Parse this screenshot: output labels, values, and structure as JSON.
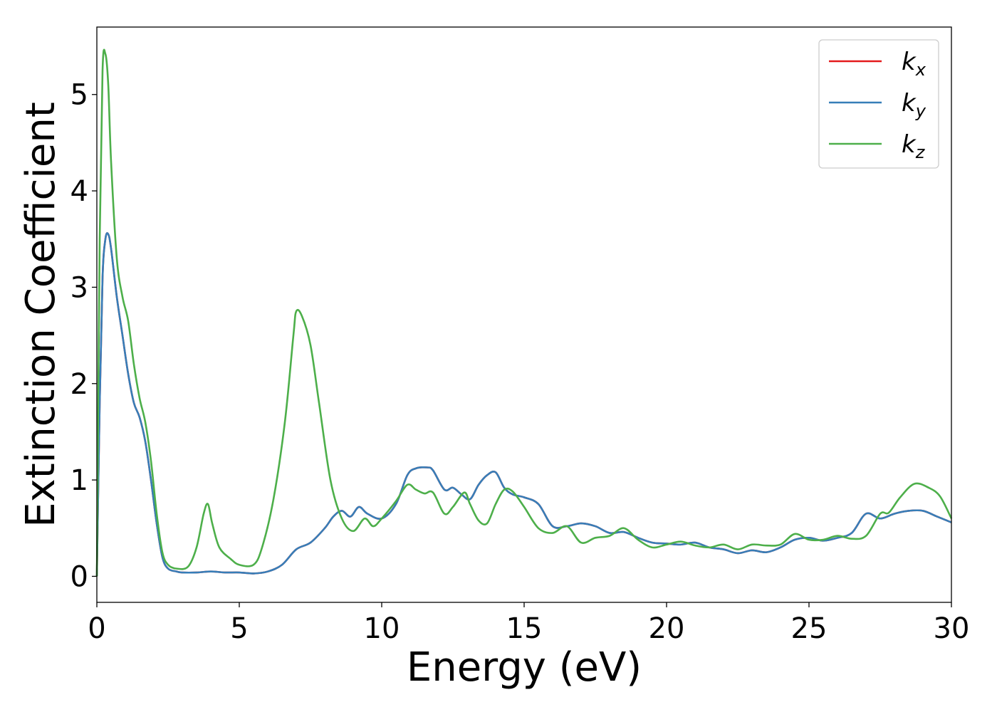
{
  "chart_data": {
    "type": "line",
    "title": "",
    "xlabel": "Energy (eV)",
    "ylabel": "Extinction Coefficient",
    "xlim": [
      0,
      30
    ],
    "ylim": [
      -0.27,
      5.7
    ],
    "xticks": [
      "0",
      "5",
      "10",
      "15",
      "20",
      "25",
      "30"
    ],
    "yticks": [
      "0",
      "1",
      "2",
      "3",
      "4",
      "5"
    ],
    "grid": false,
    "legend_position": "top-right",
    "series": [
      {
        "name": "k",
        "subscript": "x",
        "color": "#e41a1c",
        "x": [
          0,
          0.1,
          0.2,
          0.3,
          0.4,
          0.5,
          0.7,
          0.9,
          1.1,
          1.3,
          1.5,
          1.7,
          1.9,
          2.1,
          2.3,
          2.5,
          2.8,
          3.0,
          3.5,
          4.0,
          4.5,
          5.0,
          5.5,
          6.0,
          6.5,
          7.0,
          7.5,
          8.0,
          8.3,
          8.6,
          8.9,
          9.2,
          9.5,
          10.0,
          10.5,
          10.9,
          11.2,
          11.6,
          11.8,
          12.2,
          12.5,
          12.8,
          13.1,
          13.4,
          13.7,
          14.0,
          14.3,
          14.6,
          15.0,
          15.5,
          16.0,
          16.5,
          17.0,
          17.5,
          18.0,
          18.5,
          19.0,
          19.5,
          20.0,
          20.5,
          21.0,
          21.5,
          22.0,
          22.5,
          23.0,
          23.5,
          24.0,
          24.5,
          25.0,
          25.5,
          26.0,
          26.5,
          27.0,
          27.5,
          28.0,
          28.5,
          29.0,
          29.5,
          30.0
        ],
        "y": [
          0,
          1.8,
          3.1,
          3.5,
          3.55,
          3.4,
          2.9,
          2.5,
          2.1,
          1.8,
          1.65,
          1.4,
          1.0,
          0.55,
          0.2,
          0.08,
          0.05,
          0.04,
          0.04,
          0.05,
          0.04,
          0.04,
          0.03,
          0.05,
          0.12,
          0.28,
          0.35,
          0.5,
          0.62,
          0.68,
          0.62,
          0.72,
          0.65,
          0.6,
          0.75,
          1.05,
          1.12,
          1.13,
          1.1,
          0.9,
          0.92,
          0.85,
          0.8,
          0.95,
          1.05,
          1.08,
          0.92,
          0.85,
          0.82,
          0.75,
          0.52,
          0.52,
          0.55,
          0.52,
          0.45,
          0.46,
          0.4,
          0.35,
          0.34,
          0.33,
          0.35,
          0.3,
          0.28,
          0.24,
          0.27,
          0.25,
          0.3,
          0.38,
          0.4,
          0.37,
          0.4,
          0.45,
          0.65,
          0.6,
          0.65,
          0.68,
          0.68,
          0.62,
          0.56
        ]
      },
      {
        "name": "k",
        "subscript": "y",
        "color": "#377eb8",
        "x": [
          0,
          0.1,
          0.2,
          0.3,
          0.4,
          0.5,
          0.7,
          0.9,
          1.1,
          1.3,
          1.5,
          1.7,
          1.9,
          2.1,
          2.3,
          2.5,
          2.8,
          3.0,
          3.5,
          4.0,
          4.5,
          5.0,
          5.5,
          6.0,
          6.5,
          7.0,
          7.5,
          8.0,
          8.3,
          8.6,
          8.9,
          9.2,
          9.5,
          10.0,
          10.5,
          10.9,
          11.2,
          11.6,
          11.8,
          12.2,
          12.5,
          12.8,
          13.1,
          13.4,
          13.7,
          14.0,
          14.3,
          14.6,
          15.0,
          15.5,
          16.0,
          16.5,
          17.0,
          17.5,
          18.0,
          18.5,
          19.0,
          19.5,
          20.0,
          20.5,
          21.0,
          21.5,
          22.0,
          22.5,
          23.0,
          23.5,
          24.0,
          24.5,
          25.0,
          25.5,
          26.0,
          26.5,
          27.0,
          27.5,
          28.0,
          28.5,
          29.0,
          29.5,
          30.0
        ],
        "y": [
          0,
          1.8,
          3.1,
          3.5,
          3.55,
          3.4,
          2.9,
          2.5,
          2.1,
          1.8,
          1.65,
          1.4,
          1.0,
          0.55,
          0.2,
          0.08,
          0.05,
          0.04,
          0.04,
          0.05,
          0.04,
          0.04,
          0.03,
          0.05,
          0.12,
          0.28,
          0.35,
          0.5,
          0.62,
          0.68,
          0.62,
          0.72,
          0.65,
          0.6,
          0.75,
          1.05,
          1.12,
          1.13,
          1.1,
          0.9,
          0.92,
          0.85,
          0.8,
          0.95,
          1.05,
          1.08,
          0.92,
          0.85,
          0.82,
          0.75,
          0.52,
          0.52,
          0.55,
          0.52,
          0.45,
          0.46,
          0.4,
          0.35,
          0.34,
          0.33,
          0.35,
          0.3,
          0.28,
          0.24,
          0.27,
          0.25,
          0.3,
          0.38,
          0.4,
          0.37,
          0.4,
          0.45,
          0.65,
          0.6,
          0.65,
          0.68,
          0.68,
          0.62,
          0.56
        ]
      },
      {
        "name": "k",
        "subscript": "z",
        "color": "#4daf4a",
        "x": [
          0,
          0.1,
          0.2,
          0.3,
          0.4,
          0.5,
          0.7,
          0.9,
          1.1,
          1.3,
          1.5,
          1.7,
          1.9,
          2.1,
          2.3,
          2.5,
          2.8,
          3.2,
          3.5,
          3.75,
          3.9,
          4.05,
          4.3,
          4.7,
          5.0,
          5.5,
          5.8,
          6.2,
          6.6,
          6.9,
          7.0,
          7.2,
          7.5,
          7.8,
          8.2,
          8.6,
          9.0,
          9.4,
          9.7,
          10.0,
          10.5,
          10.9,
          11.2,
          11.5,
          11.8,
          12.2,
          12.5,
          12.9,
          13.1,
          13.4,
          13.7,
          14.0,
          14.3,
          14.6,
          15.0,
          15.5,
          16.0,
          16.5,
          17.0,
          17.5,
          18.0,
          18.5,
          19.0,
          19.5,
          20.0,
          20.5,
          21.0,
          21.5,
          22.0,
          22.5,
          23.0,
          23.5,
          24.0,
          24.5,
          25.0,
          25.5,
          26.0,
          26.5,
          27.0,
          27.5,
          27.8,
          28.2,
          28.7,
          29.2,
          29.6,
          30.0
        ],
        "y": [
          0,
          3.5,
          5.25,
          5.42,
          5.1,
          4.3,
          3.3,
          2.9,
          2.65,
          2.2,
          1.85,
          1.6,
          1.2,
          0.65,
          0.25,
          0.12,
          0.08,
          0.1,
          0.3,
          0.65,
          0.75,
          0.55,
          0.3,
          0.18,
          0.12,
          0.12,
          0.3,
          0.8,
          1.6,
          2.5,
          2.75,
          2.7,
          2.4,
          1.8,
          1.0,
          0.6,
          0.47,
          0.6,
          0.52,
          0.6,
          0.78,
          0.95,
          0.9,
          0.86,
          0.87,
          0.65,
          0.72,
          0.87,
          0.75,
          0.58,
          0.55,
          0.75,
          0.9,
          0.88,
          0.72,
          0.5,
          0.45,
          0.52,
          0.35,
          0.4,
          0.42,
          0.5,
          0.38,
          0.3,
          0.33,
          0.36,
          0.32,
          0.3,
          0.33,
          0.28,
          0.33,
          0.32,
          0.33,
          0.44,
          0.38,
          0.38,
          0.42,
          0.39,
          0.42,
          0.65,
          0.66,
          0.82,
          0.96,
          0.92,
          0.83,
          0.6
        ]
      }
    ]
  }
}
